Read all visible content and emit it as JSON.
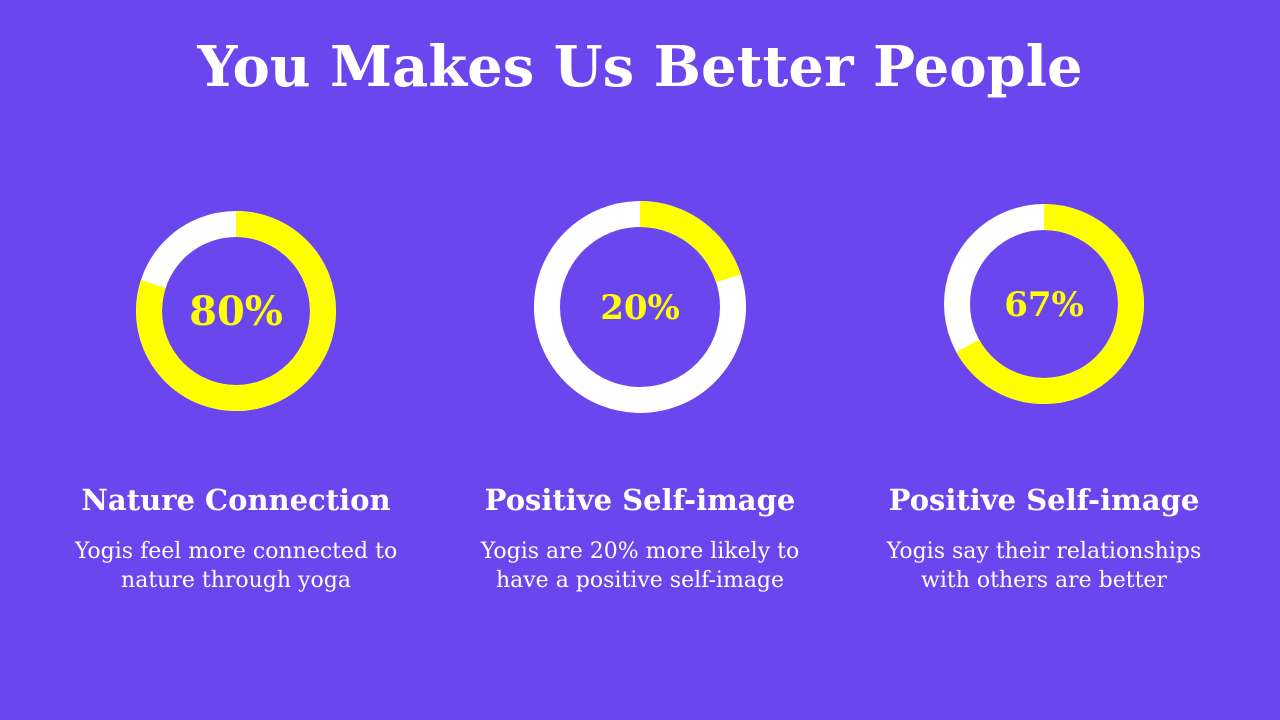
{
  "slide": {
    "title": "You Makes Us Better People"
  },
  "colors": {
    "background": "#6b46ef",
    "accent": "#ffff00",
    "ring_track": "#ffffff",
    "text": "#ffffff"
  },
  "chart_data": [
    {
      "type": "pie",
      "value": 80,
      "label": "80%",
      "title": "Nature Connection",
      "description_lines": [
        "Yogis feel more connected to",
        "nature through yoga"
      ]
    },
    {
      "type": "pie",
      "value": 20,
      "label": "20%",
      "title": "Positive Self-image",
      "description_lines": [
        "Yogis are 20% more likely to",
        "have a positive self-image"
      ]
    },
    {
      "type": "pie",
      "value": 67,
      "label": "67%",
      "title": "Positive Self-image",
      "description_lines": [
        "Yogis say their relationships",
        "with others are better"
      ]
    }
  ]
}
